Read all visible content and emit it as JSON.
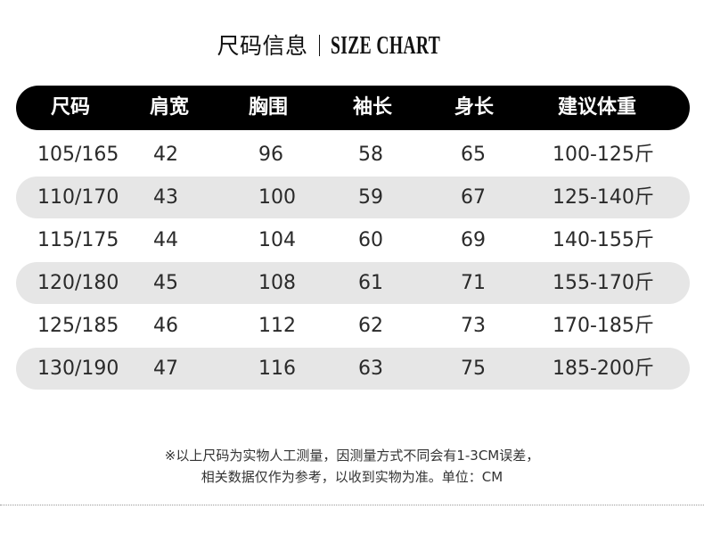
{
  "title": {
    "cn": "尺码信息",
    "en": "SIZE CHART"
  },
  "table": {
    "headers": [
      "尺码",
      "肩宽",
      "胸围",
      "袖长",
      "身长",
      "建议体重"
    ],
    "rows": [
      [
        "105/165",
        "42",
        "96",
        "58",
        "65",
        "100-125斤"
      ],
      [
        "110/170",
        "43",
        "100",
        "59",
        "67",
        "125-140斤"
      ],
      [
        "115/175",
        "44",
        "104",
        "60",
        "69",
        "140-155斤"
      ],
      [
        "120/180",
        "45",
        "108",
        "61",
        "71",
        "155-170斤"
      ],
      [
        "125/185",
        "46",
        "112",
        "62",
        "73",
        "170-185斤"
      ],
      [
        "130/190",
        "47",
        "116",
        "63",
        "75",
        "185-200斤"
      ]
    ]
  },
  "notes": [
    "※以上尺码为实物人工测量，因测量方式不同会有1-3CM误差，",
    "相关数据仅作为参考，以收到实物为准。单位：CM"
  ],
  "colors": {
    "header_bg": "#000000",
    "alt_row_bg": "#e6e6e6"
  }
}
